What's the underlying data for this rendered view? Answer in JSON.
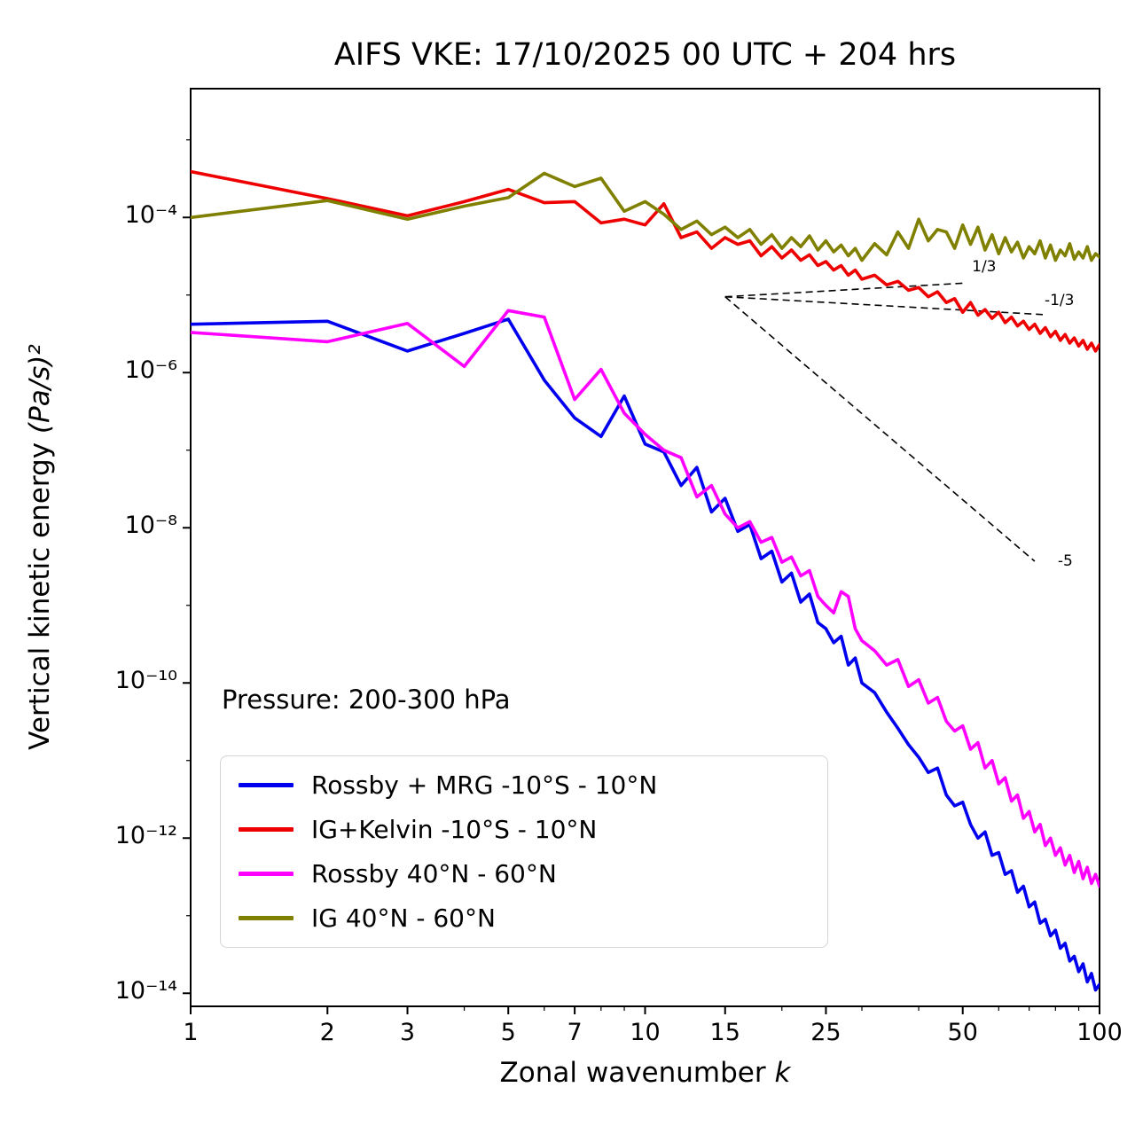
{
  "chart_data": {
    "type": "line",
    "title": "AIFS VKE: 17/10/2025 00 UTC + 204 hrs",
    "xlabel": "Zonal wavenumber ",
    "xlabel_var": "k",
    "ylabel": "Vertical kinetic energy ",
    "ylabel_units": "(Pa/s)²",
    "annotation": "Pressure: 200-300 hPa",
    "x_scale": "log",
    "y_scale": "log",
    "xlim": [
      1,
      100
    ],
    "x_ticks": [
      1,
      2,
      3,
      5,
      7,
      10,
      15,
      25,
      50,
      100
    ],
    "x_minor_ticks": [
      4,
      6,
      8,
      9,
      20,
      30,
      40,
      60,
      70,
      80,
      90
    ],
    "y_ticks": [
      {
        "exp": -4,
        "label": "10⁻⁴"
      },
      {
        "exp": -6,
        "label": "10⁻⁶"
      },
      {
        "exp": -8,
        "label": "10⁻⁸"
      },
      {
        "exp": -10,
        "label": "10⁻¹⁰"
      },
      {
        "exp": -12,
        "label": "10⁻¹²"
      },
      {
        "exp": -14,
        "label": "10⁻¹⁴"
      }
    ],
    "y_minor_tick_exponents": [
      -3,
      -5,
      -7,
      -9,
      -11,
      -13
    ],
    "legend_position": "lower left",
    "grid": false,
    "series": [
      {
        "name": "Rossby + MRG -10°S - 10°N",
        "color": "#0000ee",
        "points": [
          [
            1,
            4.2e-06
          ],
          [
            2,
            4.6e-06
          ],
          [
            3,
            1.9e-06
          ],
          [
            4,
            3.2e-06
          ],
          [
            5,
            4.9e-06
          ],
          [
            6,
            8e-07
          ],
          [
            7,
            2.6e-07
          ],
          [
            8,
            1.5e-07
          ],
          [
            9,
            5e-07
          ],
          [
            10,
            1.2e-07
          ],
          [
            11,
            9.5e-08
          ],
          [
            12,
            3.5e-08
          ],
          [
            13,
            6e-08
          ],
          [
            14,
            1.6e-08
          ],
          [
            15,
            2.4e-08
          ],
          [
            16,
            9e-09
          ],
          [
            17,
            1.1e-08
          ],
          [
            18,
            4e-09
          ],
          [
            19,
            5e-09
          ],
          [
            20,
            2e-09
          ],
          [
            21,
            2.6e-09
          ],
          [
            22,
            1.1e-09
          ],
          [
            23,
            1.4e-09
          ],
          [
            24,
            6e-10
          ],
          [
            25,
            5e-10
          ],
          [
            26,
            3.3e-10
          ],
          [
            27,
            4e-10
          ],
          [
            28,
            1.7e-10
          ],
          [
            29,
            2.1e-10
          ],
          [
            30,
            1e-10
          ],
          [
            32,
            7.5e-11
          ],
          [
            34,
            4.2e-11
          ],
          [
            36,
            2.6e-11
          ],
          [
            38,
            1.6e-11
          ],
          [
            40,
            1.1e-11
          ],
          [
            42,
            7e-12
          ],
          [
            44,
            8e-12
          ],
          [
            46,
            3.6e-12
          ],
          [
            48,
            2.6e-12
          ],
          [
            50,
            2.9e-12
          ],
          [
            52,
            1.5e-12
          ],
          [
            54,
            1e-12
          ],
          [
            56,
            1.2e-12
          ],
          [
            58,
            6e-13
          ],
          [
            60,
            6.5e-13
          ],
          [
            62,
            3.4e-13
          ],
          [
            64,
            3.8e-13
          ],
          [
            66,
            2e-13
          ],
          [
            68,
            2.4e-13
          ],
          [
            70,
            1.3e-13
          ],
          [
            72,
            1.5e-13
          ],
          [
            74,
            8e-14
          ],
          [
            76,
            9e-14
          ],
          [
            78,
            5.5e-14
          ],
          [
            80,
            6.5e-14
          ],
          [
            82,
            3.8e-14
          ],
          [
            84,
            4.4e-14
          ],
          [
            86,
            2.6e-14
          ],
          [
            88,
            3e-14
          ],
          [
            90,
            1.9e-14
          ],
          [
            92,
            2.4e-14
          ],
          [
            94,
            1.4e-14
          ],
          [
            96,
            1.8e-14
          ],
          [
            98,
            1.1e-14
          ],
          [
            100,
            1.3e-14
          ]
        ]
      },
      {
        "name": "IG+Kelvin -10°S - 10°N",
        "color": "#ee0000",
        "points": [
          [
            1,
            0.00039
          ],
          [
            2,
            0.000175
          ],
          [
            3,
            0.000105
          ],
          [
            4,
            0.00016
          ],
          [
            5,
            0.00023
          ],
          [
            6,
            0.000155
          ],
          [
            7,
            0.00016
          ],
          [
            8,
            8.5e-05
          ],
          [
            9,
            9.5e-05
          ],
          [
            10,
            8e-05
          ],
          [
            11,
            0.00015
          ],
          [
            12,
            5.5e-05
          ],
          [
            13,
            6.5e-05
          ],
          [
            14,
            4e-05
          ],
          [
            15,
            5.5e-05
          ],
          [
            16,
            4.5e-05
          ],
          [
            17,
            5e-05
          ],
          [
            18,
            3.2e-05
          ],
          [
            19,
            4.2e-05
          ],
          [
            20,
            3e-05
          ],
          [
            21,
            3.8e-05
          ],
          [
            22,
            2.8e-05
          ],
          [
            23,
            3.3e-05
          ],
          [
            24,
            2.4e-05
          ],
          [
            25,
            2.7e-05
          ],
          [
            26,
            2.1e-05
          ],
          [
            27,
            2.4e-05
          ],
          [
            28,
            1.8e-05
          ],
          [
            29,
            2.1e-05
          ],
          [
            30,
            1.6e-05
          ],
          [
            32,
            1.8e-05
          ],
          [
            34,
            1.35e-05
          ],
          [
            36,
            1.5e-05
          ],
          [
            38,
            1.15e-05
          ],
          [
            40,
            1.25e-05
          ],
          [
            42,
            9.5e-06
          ],
          [
            44,
            1.1e-05
          ],
          [
            46,
            8e-06
          ],
          [
            48,
            9e-06
          ],
          [
            50,
            6e-06
          ],
          [
            52,
            8e-06
          ],
          [
            54,
            5.5e-06
          ],
          [
            56,
            6.5e-06
          ],
          [
            58,
            5e-06
          ],
          [
            60,
            6e-06
          ],
          [
            62,
            4.4e-06
          ],
          [
            64,
            5.2e-06
          ],
          [
            66,
            4e-06
          ],
          [
            68,
            4.6e-06
          ],
          [
            70,
            3.6e-06
          ],
          [
            72,
            4.2e-06
          ],
          [
            74,
            3.2e-06
          ],
          [
            76,
            3.8e-06
          ],
          [
            78,
            2.9e-06
          ],
          [
            80,
            3.4e-06
          ],
          [
            82,
            2.6e-06
          ],
          [
            84,
            3.1e-06
          ],
          [
            86,
            2.4e-06
          ],
          [
            88,
            2.8e-06
          ],
          [
            90,
            2.2e-06
          ],
          [
            92,
            2.6e-06
          ],
          [
            94,
            2e-06
          ],
          [
            96,
            2.4e-06
          ],
          [
            98,
            1.9e-06
          ],
          [
            100,
            2.3e-06
          ]
        ]
      },
      {
        "name": "Rossby 40°N - 60°N",
        "color": "#ff00ff",
        "points": [
          [
            1,
            3.3e-06
          ],
          [
            2,
            2.5e-06
          ],
          [
            3,
            4.3e-06
          ],
          [
            4,
            1.2e-06
          ],
          [
            5,
            6.3e-06
          ],
          [
            6,
            5.2e-06
          ],
          [
            7,
            4.5e-07
          ],
          [
            8,
            1.1e-06
          ],
          [
            9,
            3e-07
          ],
          [
            10,
            1.6e-07
          ],
          [
            11,
            1e-07
          ],
          [
            12,
            8e-08
          ],
          [
            13,
            2.5e-08
          ],
          [
            14,
            3.5e-08
          ],
          [
            15,
            1.5e-08
          ],
          [
            16,
            1e-08
          ],
          [
            17,
            1.2e-08
          ],
          [
            18,
            6.5e-09
          ],
          [
            19,
            7.5e-09
          ],
          [
            20,
            3.6e-09
          ],
          [
            21,
            4.2e-09
          ],
          [
            22,
            2.4e-09
          ],
          [
            23,
            2.8e-09
          ],
          [
            24,
            1.3e-09
          ],
          [
            25,
            1e-09
          ],
          [
            26,
            8e-10
          ],
          [
            27,
            1.5e-09
          ],
          [
            28,
            1.3e-09
          ],
          [
            29,
            5e-10
          ],
          [
            30,
            3.5e-10
          ],
          [
            32,
            2.6e-10
          ],
          [
            34,
            1.7e-10
          ],
          [
            36,
            2e-10
          ],
          [
            38,
            9e-11
          ],
          [
            40,
            1.1e-10
          ],
          [
            42,
            5.5e-11
          ],
          [
            44,
            6.5e-11
          ],
          [
            46,
            3.2e-11
          ],
          [
            48,
            2.4e-11
          ],
          [
            50,
            2.8e-11
          ],
          [
            52,
            1.4e-11
          ],
          [
            54,
            1.7e-11
          ],
          [
            56,
            8e-12
          ],
          [
            58,
            1e-11
          ],
          [
            60,
            5e-12
          ],
          [
            62,
            6e-12
          ],
          [
            64,
            3e-12
          ],
          [
            66,
            3.6e-12
          ],
          [
            68,
            1.8e-12
          ],
          [
            70,
            2.2e-12
          ],
          [
            72,
            1.2e-12
          ],
          [
            74,
            1.5e-12
          ],
          [
            76,
            8e-13
          ],
          [
            78,
            1e-12
          ],
          [
            80,
            6e-13
          ],
          [
            82,
            7.5e-13
          ],
          [
            84,
            4.5e-13
          ],
          [
            86,
            6e-13
          ],
          [
            88,
            3.6e-13
          ],
          [
            90,
            5e-13
          ],
          [
            92,
            3e-13
          ],
          [
            94,
            4.2e-13
          ],
          [
            96,
            2.6e-13
          ],
          [
            98,
            3.4e-13
          ],
          [
            100,
            2.4e-13
          ]
        ]
      },
      {
        "name": "IG 40°N - 60°N",
        "color": "#808000",
        "points": [
          [
            1,
            0.0001
          ],
          [
            2,
            0.000165
          ],
          [
            3,
            9.5e-05
          ],
          [
            4,
            0.00014
          ],
          [
            5,
            0.00018
          ],
          [
            6,
            0.00037
          ],
          [
            7,
            0.00025
          ],
          [
            8,
            0.00032
          ],
          [
            9,
            0.00012
          ],
          [
            10,
            0.00016
          ],
          [
            11,
            0.00011
          ],
          [
            12,
            7e-05
          ],
          [
            13,
            9e-05
          ],
          [
            14,
            6e-05
          ],
          [
            15,
            7.5e-05
          ],
          [
            16,
            5.5e-05
          ],
          [
            17,
            7e-05
          ],
          [
            18,
            4.5e-05
          ],
          [
            19,
            6e-05
          ],
          [
            20,
            4e-05
          ],
          [
            21,
            5.5e-05
          ],
          [
            22,
            4.2e-05
          ],
          [
            23,
            5.8e-05
          ],
          [
            24,
            3.8e-05
          ],
          [
            25,
            5e-05
          ],
          [
            26,
            3.6e-05
          ],
          [
            27,
            4.4e-05
          ],
          [
            28,
            3.2e-05
          ],
          [
            29,
            4e-05
          ],
          [
            30,
            2.8e-05
          ],
          [
            32,
            4.6e-05
          ],
          [
            34,
            3.3e-05
          ],
          [
            36,
            6.5e-05
          ],
          [
            38,
            4e-05
          ],
          [
            40,
            9.5e-05
          ],
          [
            42,
            5e-05
          ],
          [
            44,
            7e-05
          ],
          [
            46,
            6.5e-05
          ],
          [
            48,
            4e-05
          ],
          [
            50,
            8e-05
          ],
          [
            52,
            4.5e-05
          ],
          [
            54,
            7.5e-05
          ],
          [
            56,
            3.8e-05
          ],
          [
            58,
            6e-05
          ],
          [
            60,
            3.4e-05
          ],
          [
            62,
            5.5e-05
          ],
          [
            64,
            3.6e-05
          ],
          [
            66,
            4.8e-05
          ],
          [
            68,
            3e-05
          ],
          [
            70,
            4.2e-05
          ],
          [
            72,
            3.4e-05
          ],
          [
            74,
            5e-05
          ],
          [
            76,
            3e-05
          ],
          [
            78,
            4.4e-05
          ],
          [
            80,
            2.8e-05
          ],
          [
            82,
            3.8e-05
          ],
          [
            84,
            3.2e-05
          ],
          [
            86,
            4.6e-05
          ],
          [
            88,
            2.9e-05
          ],
          [
            90,
            3.6e-05
          ],
          [
            92,
            3e-05
          ],
          [
            94,
            4.2e-05
          ],
          [
            96,
            2.8e-05
          ],
          [
            98,
            3.4e-05
          ],
          [
            100,
            3.1e-05
          ]
        ]
      }
    ],
    "reference_lines": [
      {
        "label": "1/3",
        "from": [
          15,
          9.5e-06
        ],
        "to": [
          51,
          1.43e-05
        ]
      },
      {
        "label": "-1/3",
        "from": [
          15,
          9.5e-06
        ],
        "to": [
          75,
          5.6e-06
        ]
      },
      {
        "label": "-5",
        "from": [
          15,
          9.5e-06
        ],
        "to": [
          72,
          3.7e-09
        ]
      }
    ]
  }
}
